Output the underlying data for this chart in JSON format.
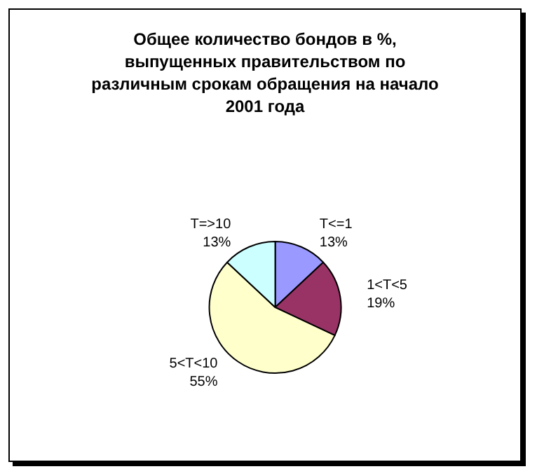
{
  "chart_data": {
    "type": "pie",
    "title": "Общее количество бондов в %,\nвыпущенных правительством по\nразличным срокам обращения на начало\n2001 года",
    "categories": [
      "T<=1",
      "1<T<5",
      "5<T<10",
      "T=>10"
    ],
    "values": [
      13,
      19,
      55,
      13
    ],
    "value_labels": [
      "13%",
      "19%",
      "55%",
      "13%"
    ],
    "colors": [
      "#9999ff",
      "#993366",
      "#ffffcc",
      "#ccffff"
    ]
  }
}
